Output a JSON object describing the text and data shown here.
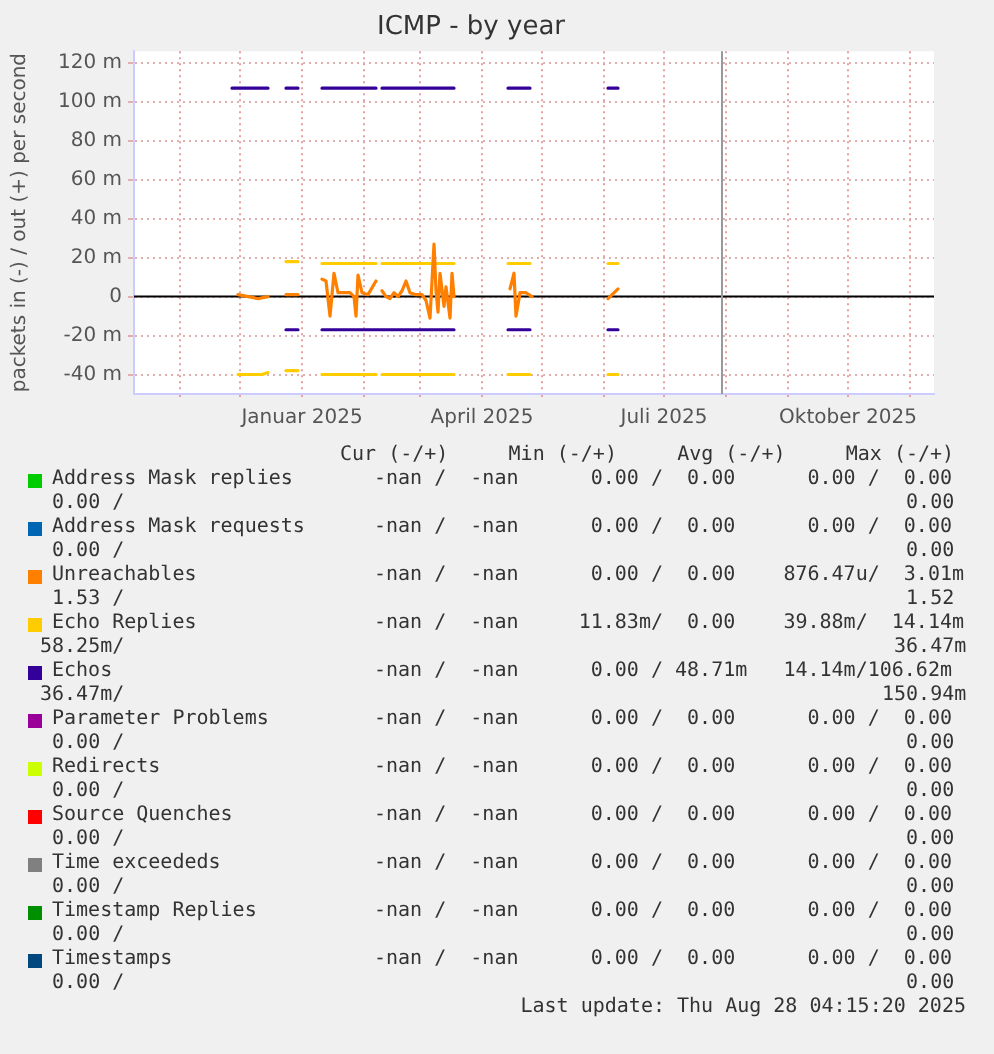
{
  "chart_data": {
    "type": "line",
    "title": "ICMP - by year",
    "ylabel": "packets in (-) / out (+) per second",
    "xlim": [
      "2024-10-09",
      "2025-11-13"
    ],
    "xticks": [
      {
        "value": "2024-11-01",
        "label": null
      },
      {
        "value": "2024-12-01",
        "label": null
      },
      {
        "value": "2025-01-01",
        "label": "Januar 2025"
      },
      {
        "value": "2025-02-01",
        "label": null
      },
      {
        "value": "2025-03-01",
        "label": null
      },
      {
        "value": "2025-04-01",
        "label": "April 2025"
      },
      {
        "value": "2025-05-01",
        "label": null
      },
      {
        "value": "2025-06-01",
        "label": null
      },
      {
        "value": "2025-07-01",
        "label": "Juli 2025"
      },
      {
        "value": "2025-08-01",
        "label": null
      },
      {
        "value": "2025-09-01",
        "label": null
      },
      {
        "value": "2025-10-01",
        "label": "Oktober 2025"
      },
      {
        "value": "2025-11-01",
        "label": null
      }
    ],
    "ylim": [
      -50,
      126
    ],
    "yticks": [
      {
        "value": -40,
        "label": "-40 m"
      },
      {
        "value": -20,
        "label": "-20 m"
      },
      0,
      {
        "value": 20,
        "label": "20 m"
      },
      {
        "value": 40,
        "label": "40 m"
      },
      {
        "value": 60,
        "label": "60 m"
      },
      {
        "value": 80,
        "label": "80 m"
      },
      {
        "value": 100,
        "label": "100 m"
      },
      {
        "value": 120,
        "label": "120 m"
      }
    ],
    "grid": true,
    "legend": "bottom",
    "marker": "none",
    "line_style": "solid",
    "ref_lines": [
      {
        "axis": "y",
        "value": 0,
        "label": null,
        "color": "#000000"
      },
      {
        "axis": "x",
        "value": "2025-07-30",
        "label": null,
        "color": "#999999"
      }
    ],
    "series": [
      {
        "name": "Address Mask replies",
        "color": "#00cc00"
      },
      {
        "name": "Address Mask requests",
        "color": "#0066b3"
      },
      {
        "name": "Unreachables",
        "color": "#ff8000",
        "x": [
          "2024-11-30",
          "2024-12-05",
          "2024-12-10",
          "2024-12-15",
          "2024-12-20",
          "2024-12-24",
          "2024-12-30",
          "2025-01-03",
          "2025-01-11",
          "2025-01-13",
          "2025-01-15",
          "2025-01-17",
          "2025-01-19",
          "2025-01-22",
          "2025-01-25",
          "2025-01-27",
          "2025-01-28",
          "2025-01-29",
          "2025-01-31",
          "2025-02-03",
          "2025-02-07",
          "2025-02-08",
          "2025-02-10",
          "2025-02-12",
          "2025-02-14",
          "2025-02-16",
          "2025-02-18",
          "2025-02-20",
          "2025-02-22",
          "2025-02-24",
          "2025-02-27",
          "2025-03-02",
          "2025-03-04",
          "2025-03-06",
          "2025-03-08",
          "2025-03-09",
          "2025-03-10",
          "2025-03-11",
          "2025-03-13",
          "2025-03-14",
          "2025-03-16",
          "2025-03-17",
          "2025-03-18",
          "2025-04-01",
          "2025-04-15",
          "2025-04-17",
          "2025-04-18",
          "2025-04-20",
          "2025-04-23",
          "2025-04-26",
          "2025-05-15",
          "2025-06-03",
          "2025-06-08"
        ],
        "values": [
          1,
          0,
          -1,
          0,
          null,
          1,
          1,
          null,
          9,
          8,
          -10,
          12,
          2,
          2,
          2,
          0,
          -10,
          11,
          2,
          1,
          8,
          null,
          3,
          0,
          -1,
          2,
          0,
          3,
          8,
          2,
          1,
          1,
          -2,
          -11,
          27,
          3,
          -8,
          12,
          -5,
          5,
          -11,
          12,
          0,
          null,
          4,
          12,
          -10,
          2,
          2,
          0,
          null,
          -1,
          4
        ]
      },
      {
        "name": "Echo Replies",
        "color": "#ffcc00",
        "x": [
          "2024-12-24",
          "2024-12-30",
          "2025-01-03",
          "2025-01-11",
          "2025-02-07",
          "2025-02-08",
          "2025-02-10",
          "2025-03-18",
          "2025-04-01",
          "2025-04-14",
          "2025-04-25",
          "2025-05-15",
          "2025-06-03",
          "2025-06-08"
        ],
        "values": [
          18,
          18,
          null,
          17,
          17,
          null,
          17,
          17,
          null,
          17,
          17,
          null,
          17,
          17
        ]
      },
      {
        "name": "Echos",
        "color": "#330099",
        "x": [
          "2024-11-27",
          "2024-12-15",
          "2024-12-20",
          "2024-12-24",
          "2024-12-30",
          "2025-01-03",
          "2025-01-11",
          "2025-02-07",
          "2025-02-08",
          "2025-02-10",
          "2025-03-18",
          "2025-04-01",
          "2025-04-14",
          "2025-04-25",
          "2025-05-15",
          "2025-06-03",
          "2025-06-08"
        ],
        "values": [
          107,
          107,
          null,
          107,
          107,
          null,
          107,
          107,
          null,
          107,
          107,
          null,
          107,
          107,
          null,
          107,
          107
        ]
      },
      {
        "name": "Parameter Problems",
        "color": "#990099"
      },
      {
        "name": "Redirects",
        "color": "#ccff00"
      },
      {
        "name": "Source Quenches",
        "color": "#ff0000"
      },
      {
        "name": "Time exceededs",
        "color": "#808080"
      },
      {
        "name": "Timestamp Replies",
        "color": "#008f00"
      },
      {
        "name": "Timestamps",
        "color": "#00487d"
      },
      {
        "color": "#ffcc00",
        "x": [
          "2024-11-30",
          "2024-12-12",
          "2024-12-15",
          "2024-12-20",
          "2024-12-24",
          "2024-12-30",
          "2025-01-03",
          "2025-01-11",
          "2025-02-07",
          "2025-02-08",
          "2025-02-10",
          "2025-03-18",
          "2025-04-01",
          "2025-04-14",
          "2025-04-25",
          "2025-05-15",
          "2025-06-03",
          "2025-06-08"
        ],
        "values": [
          -40,
          -40,
          -39,
          null,
          -38,
          -38,
          null,
          -40,
          -40,
          null,
          -40,
          -40,
          null,
          -40,
          -40,
          null,
          -40,
          -40
        ]
      },
      {
        "color": "#330099",
        "x": [
          "2024-12-24",
          "2024-12-30",
          "2025-01-03",
          "2025-01-11",
          "2025-03-18",
          "2025-04-01",
          "2025-04-14",
          "2025-04-25",
          "2025-05-15",
          "2025-06-03",
          "2025-06-08"
        ],
        "values": [
          -17,
          -17,
          null,
          -17,
          -17,
          null,
          -17,
          -17,
          null,
          -17,
          -17
        ]
      }
    ],
    "annotations": [
      "Cur (-/+)     Min (-/+)     Avg (-/+)     Max (-/+)",
      "-nan /  -nan      0.00 /  0.00      0.00 /  0.00",
      " 0.00 /",
      "  0.00",
      "-nan /  -nan      0.00 /  0.00      0.00 /  0.00",
      " 0.00 /",
      "  0.00",
      "-nan /  -nan      0.00 /  0.00    876.47u/  3.01m",
      " 1.53 /",
      "  1.52",
      "-nan /  -nan     11.83m/  0.00    39.88m/  14.14m",
      "58.25m/",
      " 36.47m",
      "-nan /  -nan      0.00 / 48.71m   14.14m/106.62m",
      "36.47m/",
      "150.94m",
      "-nan /  -nan      0.00 /  0.00      0.00 /  0.00",
      " 0.00 /",
      "  0.00",
      "-nan /  -nan      0.00 /  0.00      0.00 /  0.00",
      " 0.00 /",
      "  0.00",
      "-nan /  -nan      0.00 /  0.00      0.00 /  0.00",
      " 0.00 /",
      "  0.00",
      "-nan /  -nan      0.00 /  0.00      0.00 /  0.00",
      " 0.00 /",
      "  0.00",
      "-nan /  -nan      0.00 /  0.00      0.00 /  0.00",
      " 0.00 /",
      "  0.00",
      "-nan /  -nan      0.00 /  0.00      0.00 /  0.00",
      " 0.00 /",
      "  0.00",
      "Last update: Thu Aug 28 04:15:20 2025"
    ]
  }
}
